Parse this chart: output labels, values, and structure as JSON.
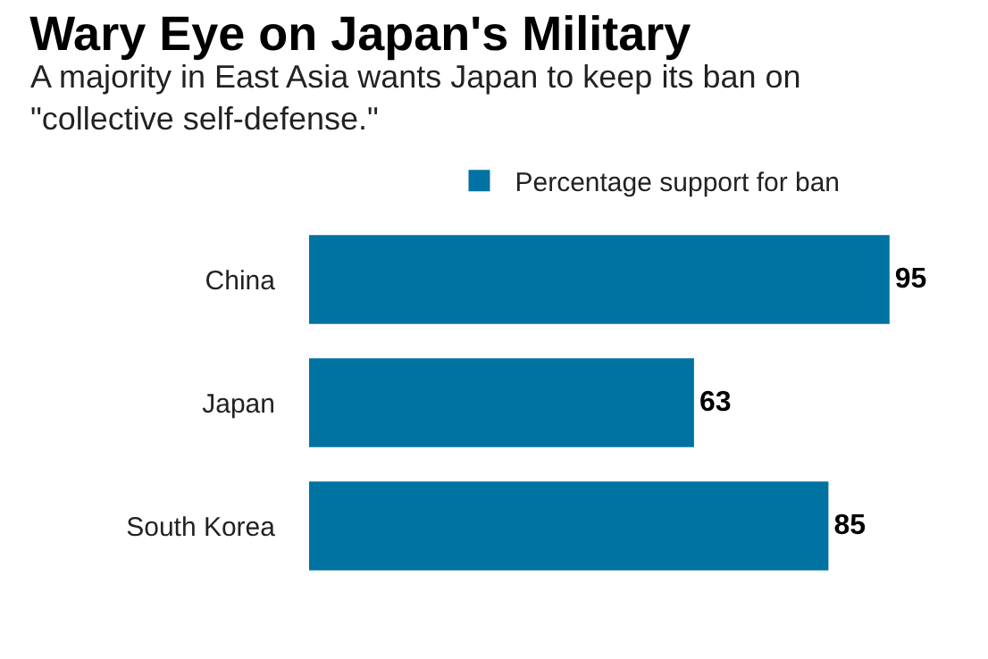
{
  "chart_data": {
    "type": "bar",
    "orientation": "horizontal",
    "title": "Wary Eye on Japan's Military",
    "subtitle": "A majority in East Asia wants Japan to keep its ban on \"collective self-defense.\"",
    "categories": [
      "China",
      "Japan",
      "South Korea"
    ],
    "series": [
      {
        "name": "Percentage support for ban",
        "color": "#0073a3",
        "values": [
          95,
          63,
          85
        ]
      }
    ],
    "data_labels": true,
    "legend": "top",
    "grid": false
  }
}
